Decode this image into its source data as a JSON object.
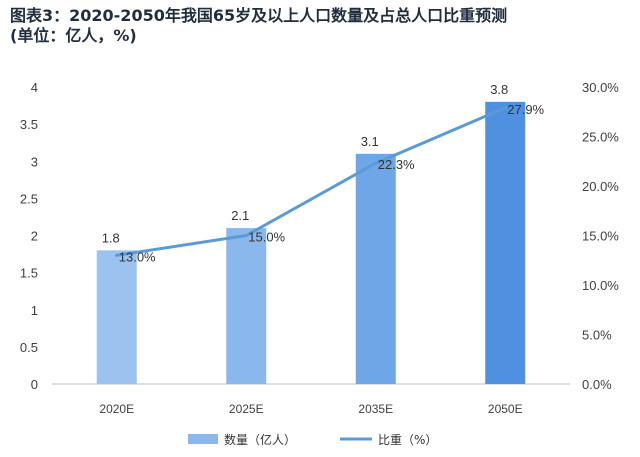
{
  "chart_data": {
    "type": "bar",
    "title_line1": "图表3：2020-2050年我国65岁及以上人口数量及占总人口比重预测",
    "title_line2": "(单位：亿人，%)",
    "categories": [
      "2020E",
      "2025E",
      "2035E",
      "2050E"
    ],
    "series": [
      {
        "name": "数量（亿人）",
        "type": "bar",
        "axis": "left",
        "values": [
          1.8,
          2.1,
          3.1,
          3.8
        ],
        "labels": [
          "1.8",
          "2.1",
          "3.1",
          "3.8"
        ]
      },
      {
        "name": "比重（%）",
        "type": "line",
        "axis": "right",
        "values": [
          13.0,
          15.0,
          22.3,
          27.9
        ],
        "labels": [
          "13.0%",
          "15.0%",
          "22.3%",
          "27.9%"
        ]
      }
    ],
    "y_left": {
      "min": 0,
      "max": 4,
      "ticks": [
        "0",
        "0.5",
        "1",
        "1.5",
        "2",
        "2.5",
        "3",
        "3.5",
        "4"
      ]
    },
    "y_right": {
      "min": 0,
      "max": 30,
      "ticks": [
        "0.0%",
        "5.0%",
        "10.0%",
        "15.0%",
        "20.0%",
        "25.0%",
        "30.0%"
      ]
    },
    "grid": false,
    "legend_position": "bottom",
    "colors": {
      "bars": [
        "#9cc3ef",
        "#8bb8ec",
        "#6ea6e8",
        "#4f90e0"
      ],
      "line": "#5b9bd5",
      "axis": "#bfbfbf",
      "legend_bar": "#8bb8ec"
    }
  }
}
